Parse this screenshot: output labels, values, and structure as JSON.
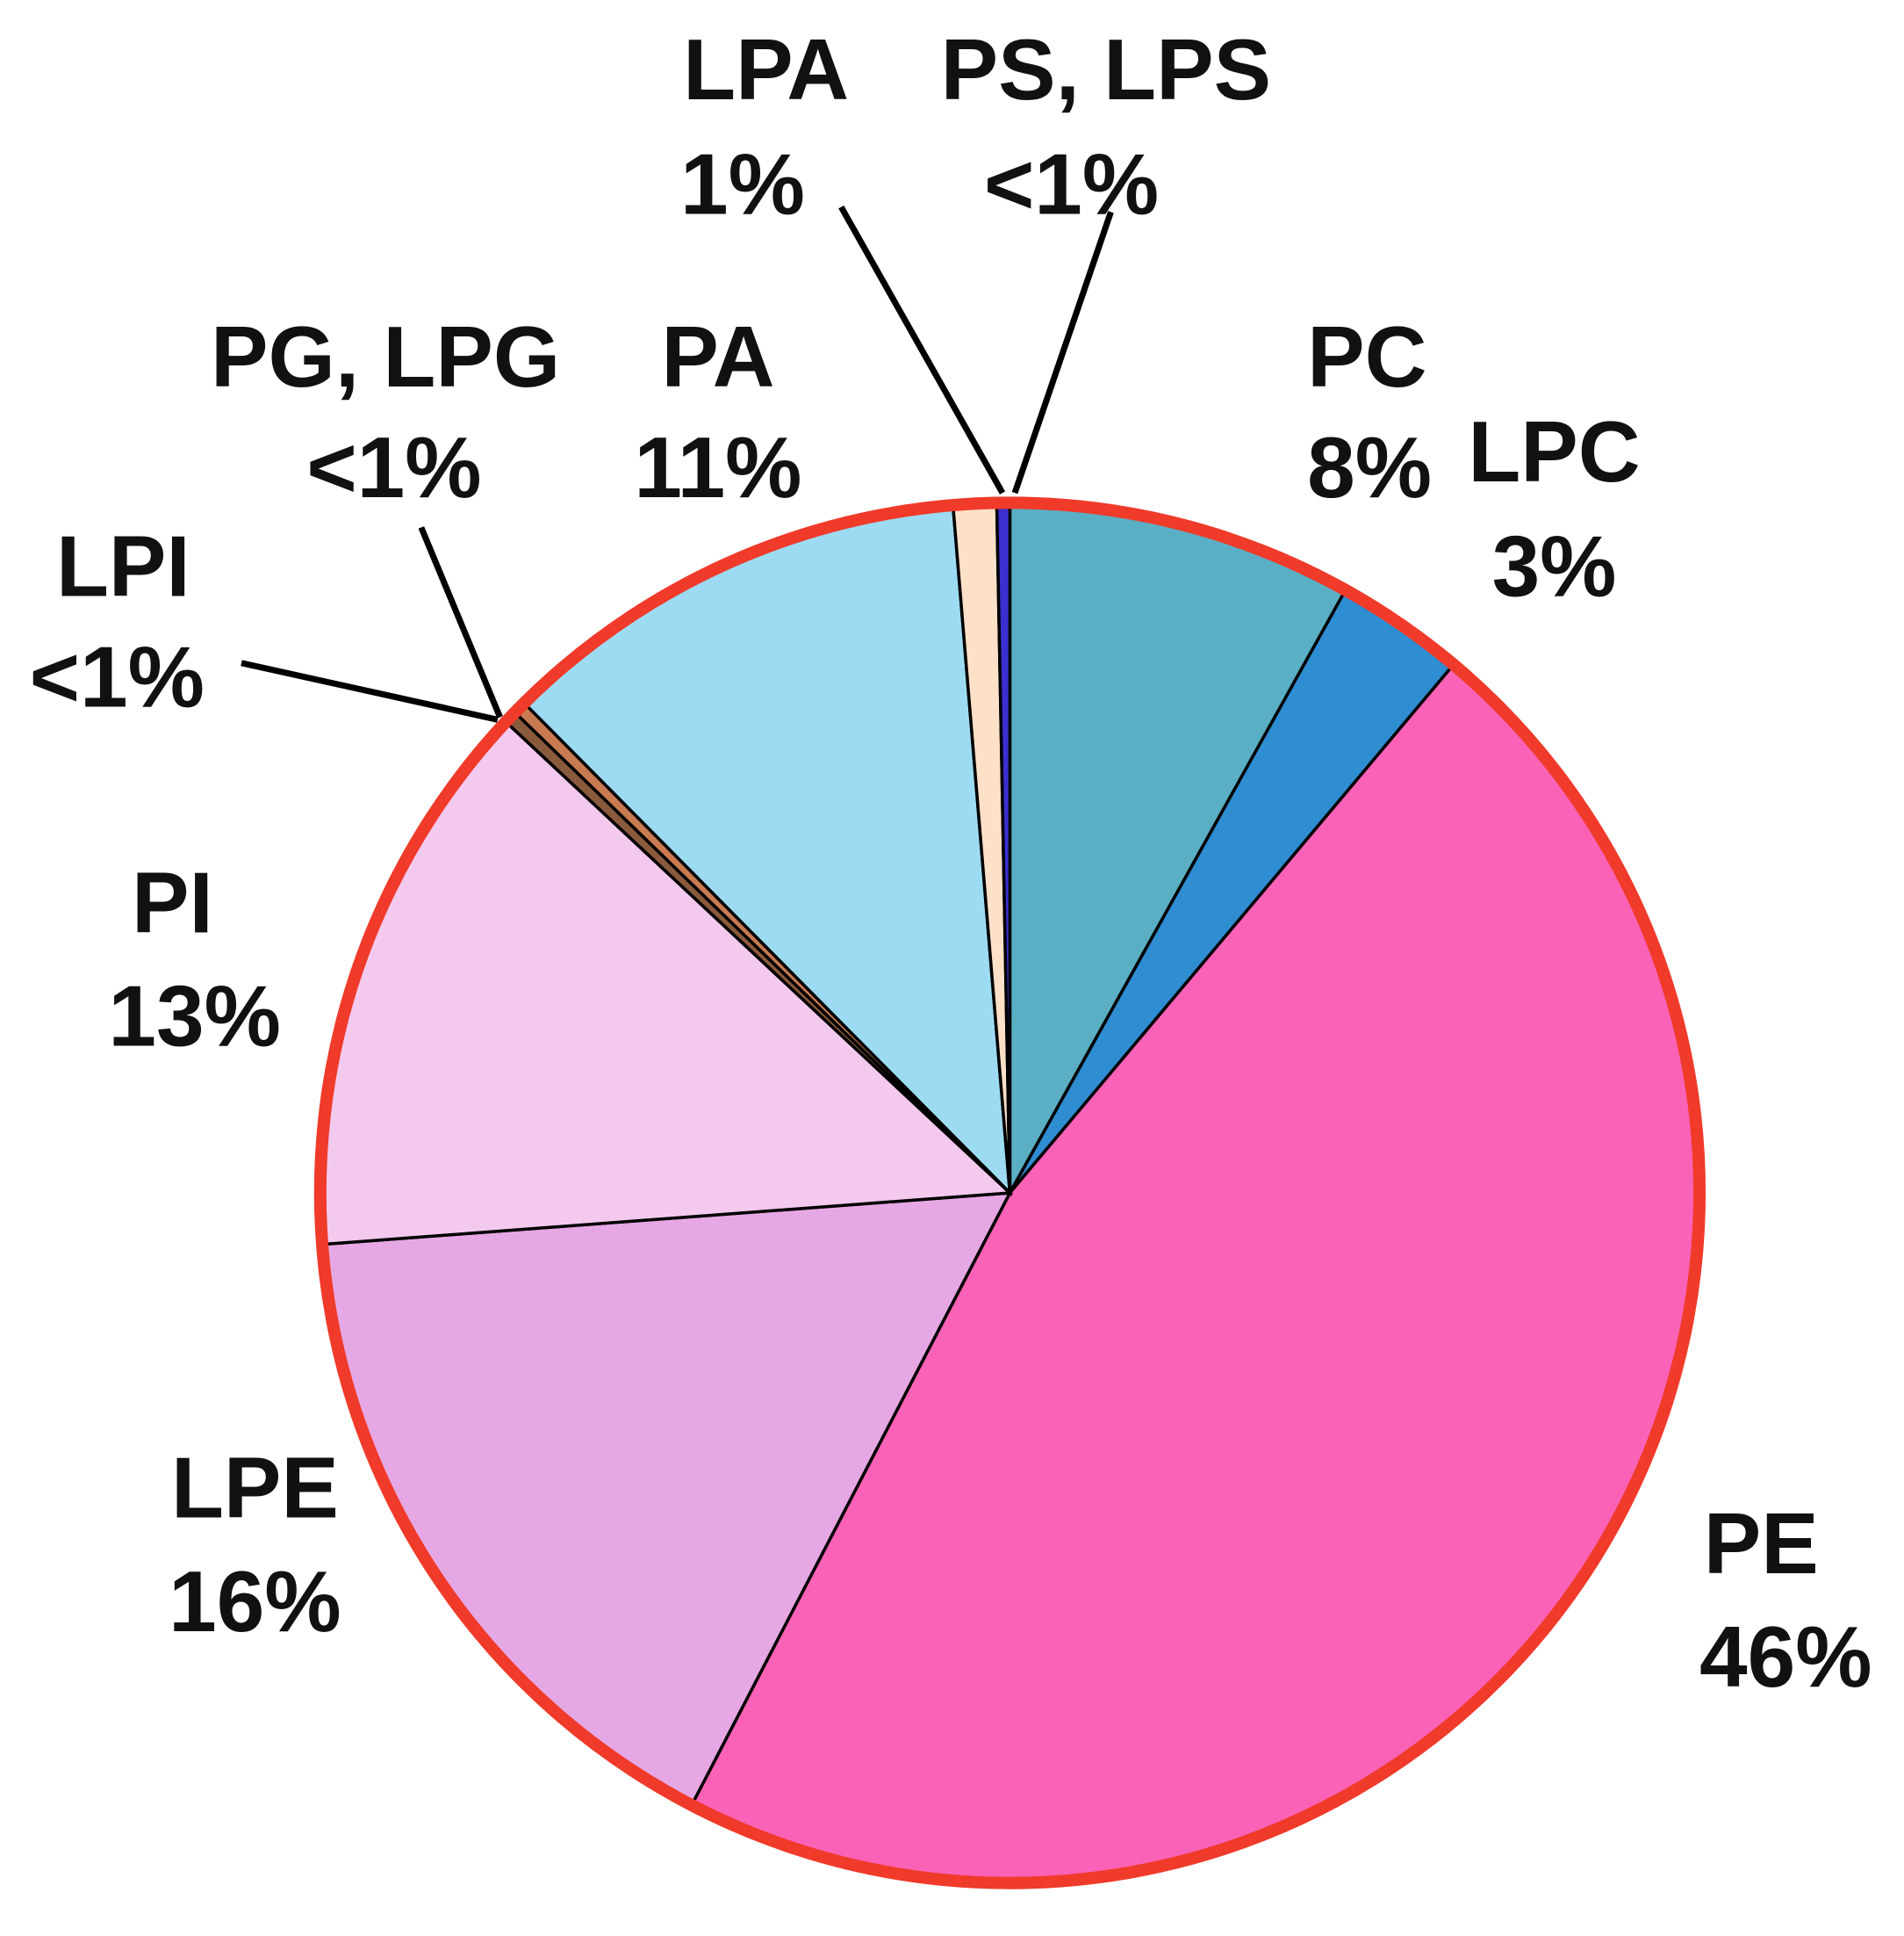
{
  "chart_data": {
    "type": "pie",
    "categories": [
      "PC",
      "LPC",
      "PE",
      "LPE",
      "PI",
      "LPI",
      "PG, LPG",
      "PA",
      "LPA",
      "PS, LPS"
    ],
    "values": [
      8,
      3,
      46,
      16,
      13,
      0.3,
      0.3,
      11,
      1,
      0.3
    ],
    "value_labels": [
      "8%",
      "3%",
      "46%",
      "16%",
      "13%",
      "<1%",
      "<1%",
      "11%",
      "1%",
      "<1%"
    ],
    "colors": [
      "#5aafc4",
      "#2f8dd2",
      "#fa62b7",
      "#e6a8e4",
      "#f3c9ee",
      "#8a5a3c",
      "#c87a50",
      "#9ddbf2",
      "#fde0c8",
      "#3b2fd0"
    ]
  }
}
